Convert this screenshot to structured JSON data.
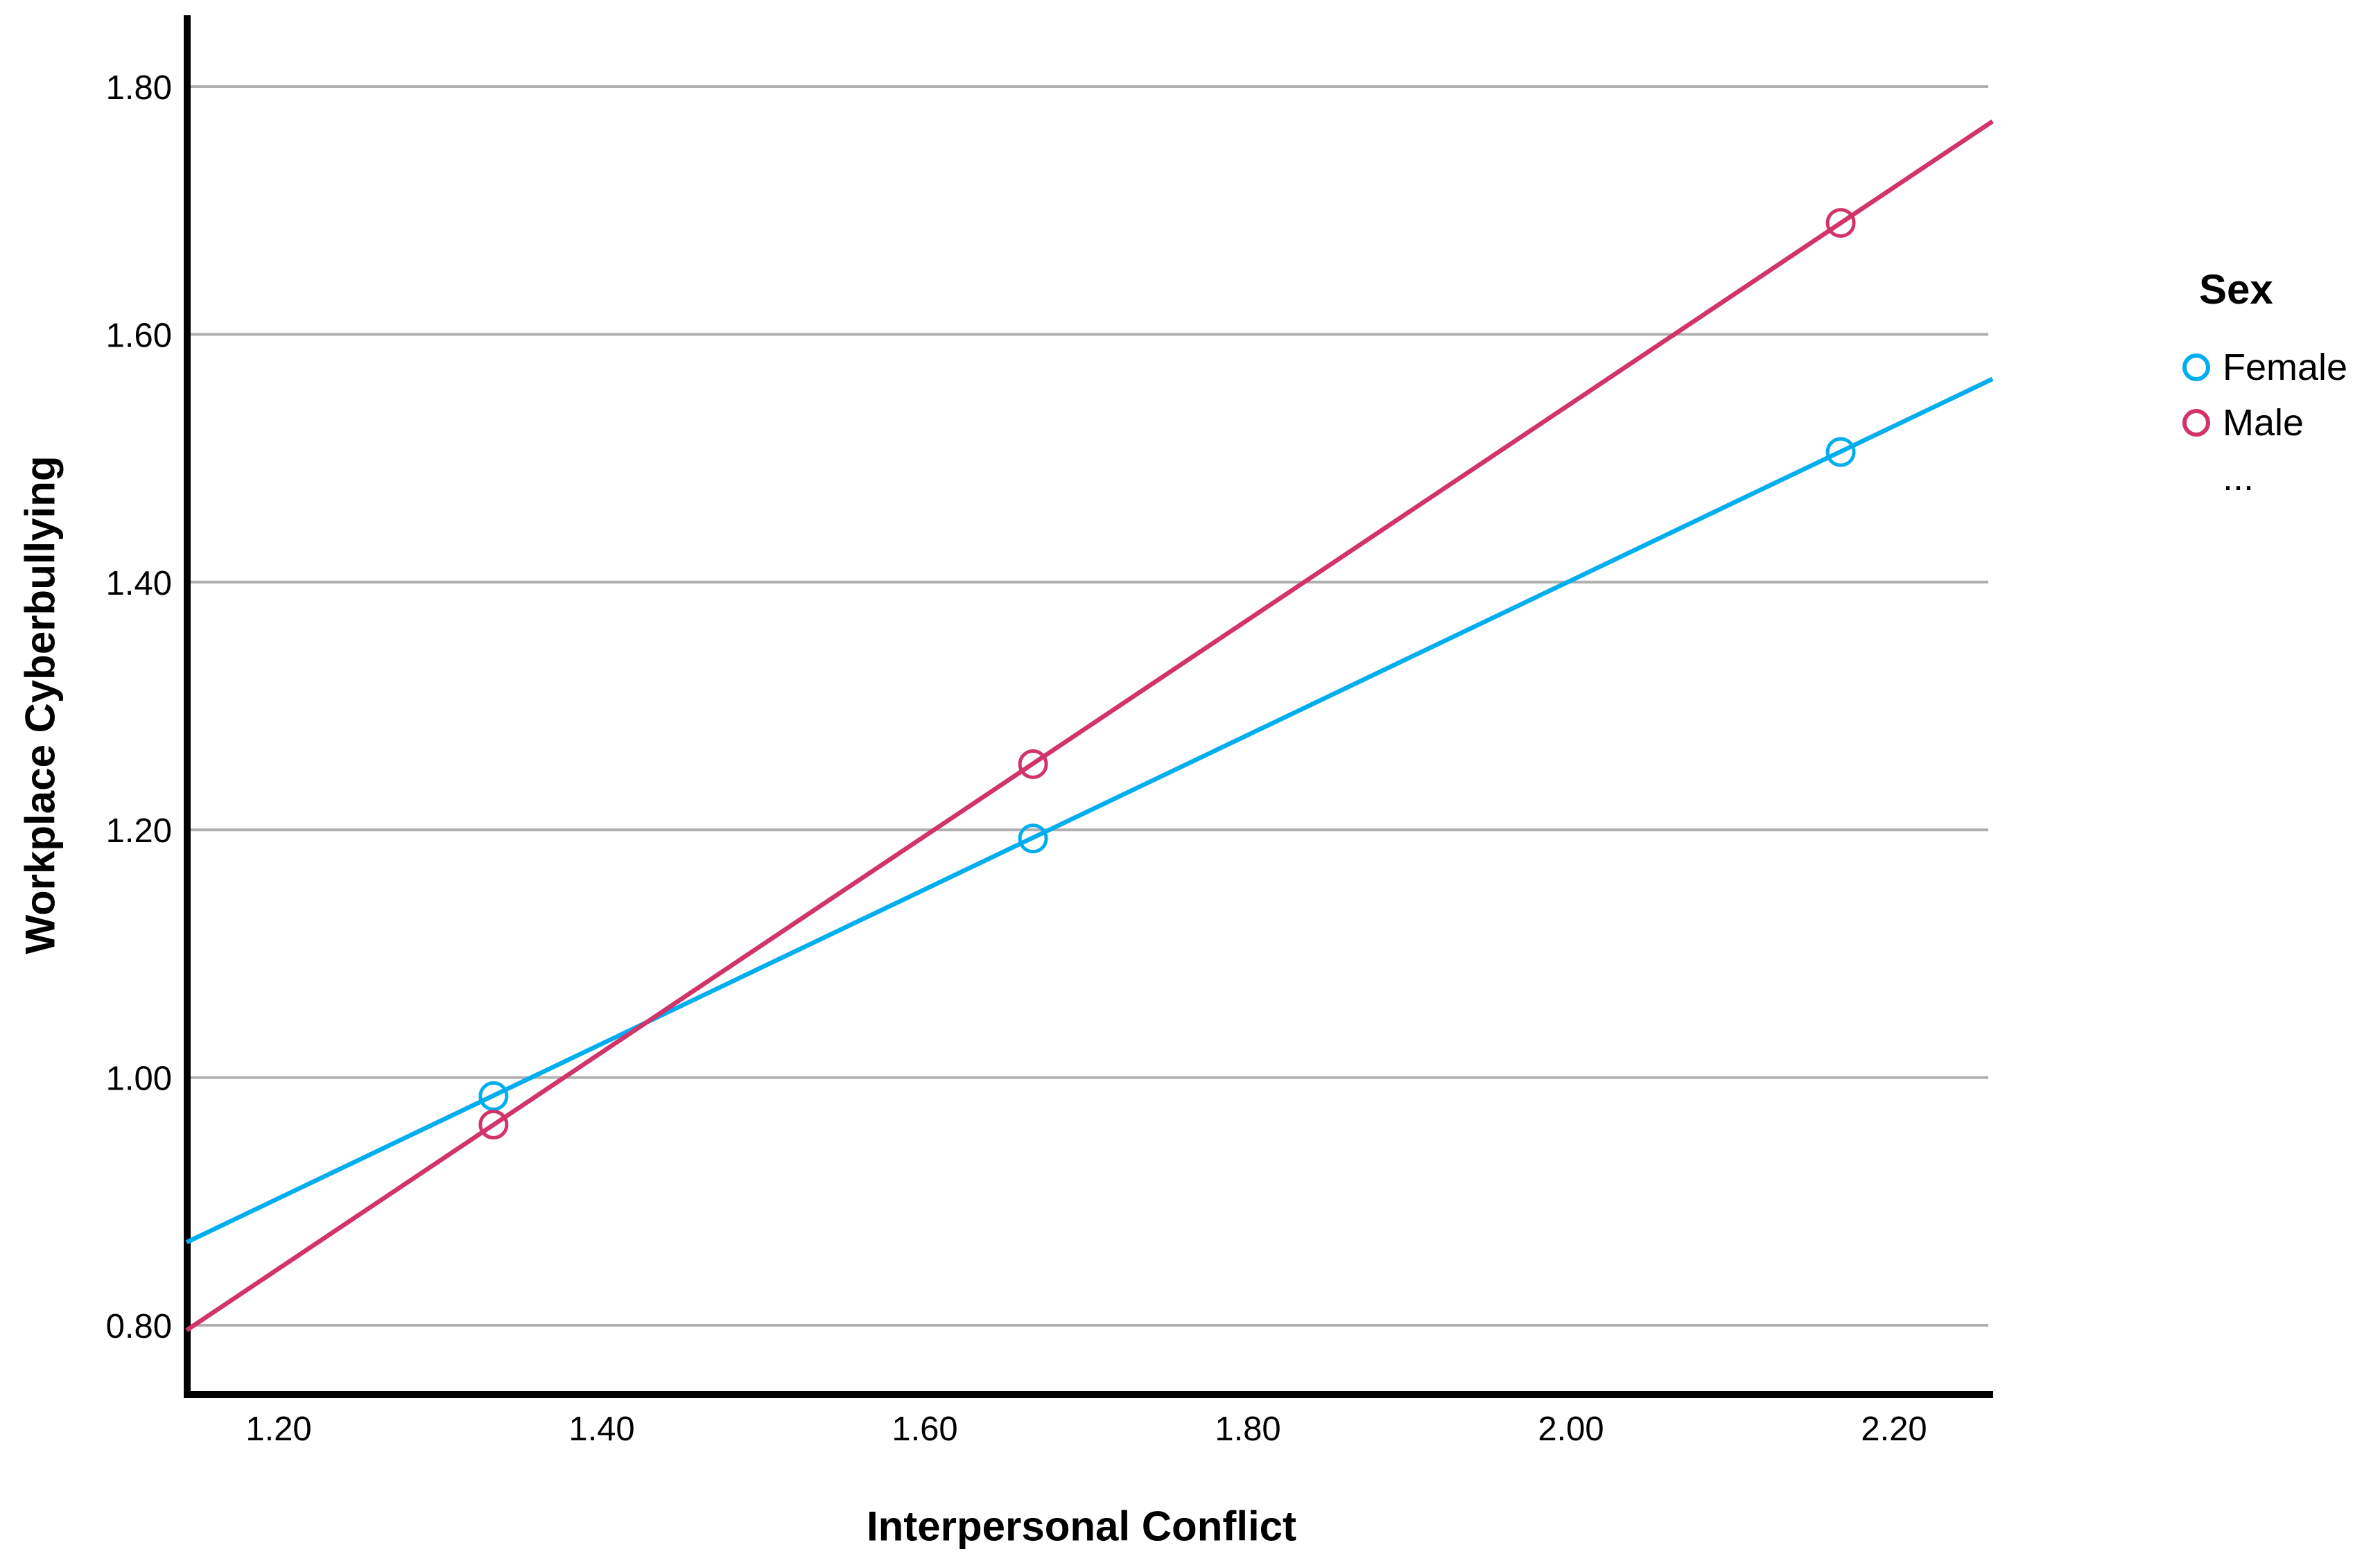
{
  "chart_data": {
    "type": "line",
    "title": "",
    "xlabel": "Interpersonal Conflict",
    "ylabel": "Workplace Cyberbullying",
    "xticks": [
      "1.20",
      "1.40",
      "1.60",
      "1.80",
      "2.00",
      "2.20"
    ],
    "yticks": [
      "0.80",
      "1.00",
      "1.20",
      "1.40",
      "1.60",
      "1.80"
    ],
    "xlim": [
      1.143,
      2.261
    ],
    "ylim": [
      0.745,
      1.858
    ],
    "grid": "horizontal-only",
    "legend": {
      "title": "Sex",
      "position": "right",
      "items": [
        {
          "label": "Female",
          "color": "#00AEEF"
        },
        {
          "label": "Male",
          "color": "#D2336B"
        },
        {
          "label": "...",
          "color": ""
        }
      ]
    },
    "colors": {
      "grid": "#B0B0B0",
      "axis": "#000000",
      "text": "#000000",
      "female": "#00AEEF",
      "male": "#D2336B"
    },
    "series": [
      {
        "name": "Female",
        "color": "#00AEEF",
        "marker": "circle-open",
        "points": [
          {
            "x": 1.333,
            "y": 0.985
          },
          {
            "x": 1.667,
            "y": 1.193
          },
          {
            "x": 2.167,
            "y": 1.505
          }
        ],
        "trend_line": {
          "x1": 1.143,
          "y1": 0.867,
          "x2": 2.261,
          "y2": 1.564
        }
      },
      {
        "name": "Male",
        "color": "#D2336B",
        "marker": "circle-open",
        "points": [
          {
            "x": 1.333,
            "y": 0.962
          },
          {
            "x": 1.667,
            "y": 1.253
          },
          {
            "x": 2.167,
            "y": 1.69
          }
        ],
        "trend_line": {
          "x1": 1.143,
          "y1": 0.796,
          "x2": 2.261,
          "y2": 1.772
        }
      }
    ]
  }
}
